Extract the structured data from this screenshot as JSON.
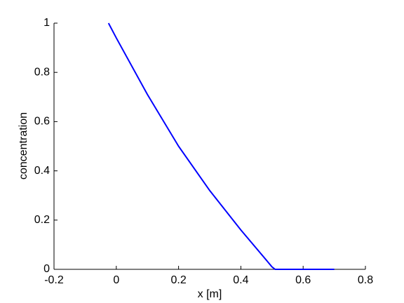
{
  "chart_data": {
    "type": "line",
    "xlabel": "x [m]",
    "ylabel": "concentration",
    "x": [
      -0.025,
      0,
      0.1,
      0.2,
      0.3,
      0.4,
      0.5,
      0.51,
      0.6,
      0.7
    ],
    "series": [
      {
        "color": "#0000ff",
        "values": [
          1,
          0.94,
          0.71,
          0.5,
          0.32,
          0.16,
          0.01,
          0,
          0,
          0
        ]
      }
    ],
    "xlim": [
      -0.2,
      0.8
    ],
    "xticks": [
      -0.2,
      0,
      0.2,
      0.4,
      0.6,
      0.8
    ],
    "ylim": [
      0,
      1
    ],
    "yticks": [
      0,
      0.2,
      0.4,
      0.6,
      0.8,
      1
    ]
  }
}
